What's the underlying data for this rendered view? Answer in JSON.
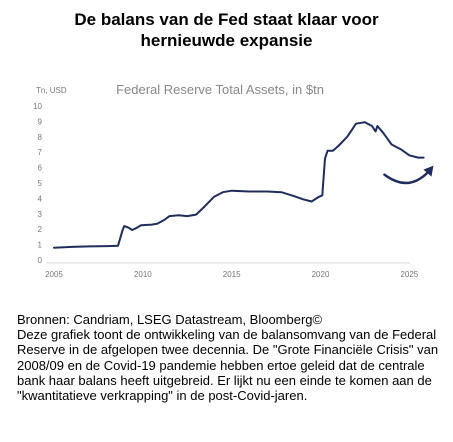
{
  "header": {
    "title_line1": "De balans van de Fed staat klaar voor",
    "title_line2": "hernieuwde expansie"
  },
  "caption": {
    "sources": "Bronnen: Candriam, LSEG Datastream, Bloomberg©",
    "description": "Deze grafiek toont de ontwikkeling van de balansomvang van de Federal Reserve in de afgelopen twee decennia. De \"Grote Financiële Crisis\" van 2008/09 en de Covid-19 pandemie hebben ertoe geleid dat de centrale bank haar balans heeft uitgebreid. Er lijkt nu een einde te komen aan de \"kwantitatieve verkrapping\" in de post-Covid-jaren."
  },
  "chart_data": {
    "type": "line",
    "title": "Federal Reserve Total Assets, in $tn",
    "ylabel": "Tn, USD",
    "xlim": [
      2005,
      2026.5
    ],
    "ylim": [
      0,
      10
    ],
    "x_ticks": [
      2005,
      2010,
      2015,
      2020,
      2025
    ],
    "y_ticks": [
      0,
      1,
      2,
      3,
      4,
      5,
      6,
      7,
      8,
      9,
      10
    ],
    "grid": false,
    "series": [
      {
        "color": "#1f2d5c",
        "points": [
          [
            2005.0,
            0.8
          ],
          [
            2006.0,
            0.85
          ],
          [
            2007.0,
            0.88
          ],
          [
            2008.0,
            0.9
          ],
          [
            2008.6,
            0.92
          ],
          [
            2008.85,
            1.9
          ],
          [
            2008.95,
            2.2
          ],
          [
            2009.2,
            2.1
          ],
          [
            2009.4,
            1.95
          ],
          [
            2009.6,
            2.05
          ],
          [
            2009.9,
            2.25
          ],
          [
            2010.5,
            2.3
          ],
          [
            2010.8,
            2.35
          ],
          [
            2011.2,
            2.6
          ],
          [
            2011.5,
            2.85
          ],
          [
            2012.0,
            2.9
          ],
          [
            2012.5,
            2.85
          ],
          [
            2013.0,
            2.95
          ],
          [
            2013.5,
            3.5
          ],
          [
            2014.0,
            4.1
          ],
          [
            2014.5,
            4.4
          ],
          [
            2015.0,
            4.5
          ],
          [
            2016.0,
            4.45
          ],
          [
            2017.0,
            4.45
          ],
          [
            2017.8,
            4.4
          ],
          [
            2018.5,
            4.15
          ],
          [
            2019.0,
            3.95
          ],
          [
            2019.5,
            3.8
          ],
          [
            2019.9,
            4.1
          ],
          [
            2020.1,
            4.2
          ],
          [
            2020.25,
            6.6
          ],
          [
            2020.4,
            7.1
          ],
          [
            2020.7,
            7.1
          ],
          [
            2021.0,
            7.4
          ],
          [
            2021.5,
            8.0
          ],
          [
            2022.0,
            8.85
          ],
          [
            2022.5,
            8.95
          ],
          [
            2022.9,
            8.7
          ],
          [
            2023.1,
            8.35
          ],
          [
            2023.2,
            8.7
          ],
          [
            2023.5,
            8.3
          ],
          [
            2024.0,
            7.5
          ],
          [
            2024.5,
            7.2
          ],
          [
            2025.0,
            6.8
          ],
          [
            2025.5,
            6.65
          ],
          [
            2025.8,
            6.65
          ]
        ]
      }
    ],
    "annotations": [
      {
        "type": "curved-arrow",
        "icon": "curved-arrow-icon",
        "color": "#1f2d5c"
      }
    ]
  }
}
